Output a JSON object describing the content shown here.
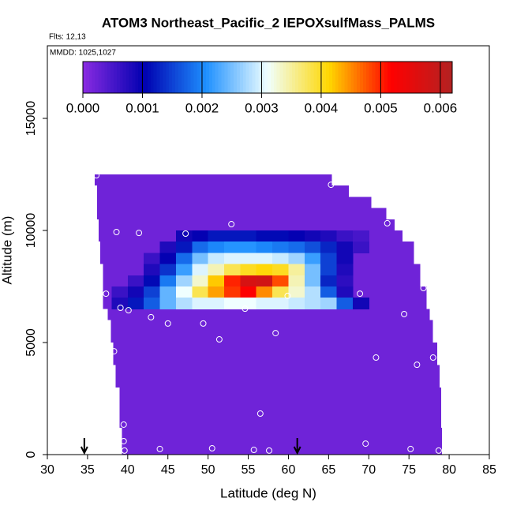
{
  "chart_data": {
    "type": "heatmap",
    "title": "ATOM3 Northeast_Pacific_2 IEPOXsulfMass_PALMS",
    "flights": "Flts: 12,13",
    "dates": "MMDD: 1025,1027",
    "x_label": "Latitude (deg N)",
    "y_label": "Altitude (m)",
    "xlim": [
      30,
      85
    ],
    "xticks": [
      30,
      35,
      40,
      45,
      50,
      55,
      60,
      65,
      70,
      75,
      80,
      85
    ],
    "ylim": [
      0,
      18240
    ],
    "yticks": [
      0,
      5000,
      10000,
      15000
    ],
    "colorbar": {
      "lim": [
        0,
        0.0062
      ],
      "ticks": [
        {
          "value": 0,
          "label": "0.000"
        },
        {
          "value": 0.001,
          "label": "0.001"
        },
        {
          "value": 0.002,
          "label": "0.002"
        },
        {
          "value": 0.003,
          "label": "0.003"
        },
        {
          "value": 0.004,
          "label": "0.004"
        },
        {
          "value": 0.005,
          "label": "0.005"
        },
        {
          "value": 0.006,
          "label": "0.006"
        }
      ],
      "colors": [
        "#8a2be2",
        "#0000b0",
        "#1e90ff",
        "#f0ffff",
        "#ffd700",
        "#ff0000",
        "#b22222"
      ]
    },
    "background": {
      "value": 0.0002,
      "bands": [
        {
          "alt": [
            0,
            1200
          ],
          "lat": [
            39.3,
            79.1
          ]
        },
        {
          "alt": [
            1200,
            3000
          ],
          "lat": [
            39.0,
            79.0
          ]
        },
        {
          "alt": [
            3000,
            4000
          ],
          "lat": [
            38.5,
            78.8
          ]
        },
        {
          "alt": [
            4000,
            5000
          ],
          "lat": [
            38.2,
            78.5
          ]
        },
        {
          "alt": [
            5000,
            6000
          ],
          "lat": [
            37.9,
            78.0
          ]
        },
        {
          "alt": [
            6000,
            6500
          ],
          "lat": [
            37.5,
            77.6
          ]
        },
        {
          "alt": [
            6500,
            7500
          ],
          "lat": [
            36.9,
            77.2
          ]
        },
        {
          "alt": [
            7500,
            8500
          ],
          "lat": [
            36.9,
            76.4
          ]
        },
        {
          "alt": [
            8500,
            9500
          ],
          "lat": [
            36.6,
            75.6
          ]
        },
        {
          "alt": [
            9500,
            10000
          ],
          "lat": [
            36.4,
            74.2
          ]
        },
        {
          "alt": [
            10000,
            10500
          ],
          "lat": [
            36.4,
            73.2
          ]
        },
        {
          "alt": [
            10500,
            11000
          ],
          "lat": [
            36.2,
            72.2
          ]
        },
        {
          "alt": [
            11000,
            11500
          ],
          "lat": [
            36.2,
            70.3
          ]
        },
        {
          "alt": [
            11500,
            12000
          ],
          "lat": [
            36.2,
            67.5
          ]
        },
        {
          "alt": [
            12000,
            12500
          ],
          "lat": [
            35.9,
            65.4
          ]
        }
      ]
    },
    "lat_edges": [
      38,
      40,
      42,
      44,
      46,
      48,
      50,
      52,
      54,
      56,
      58,
      60,
      62,
      64,
      66,
      68,
      70,
      72
    ],
    "rows": [
      {
        "alt": [
          9500,
          10000
        ],
        "values": [
          null,
          null,
          null,
          null,
          0.0009,
          0.001,
          0.0012,
          0.0012,
          0.0012,
          0.0011,
          0.0011,
          0.001,
          0.0009,
          0.0008,
          0.0006,
          0.0005,
          null
        ]
      },
      {
        "alt": [
          9000,
          9500
        ],
        "values": [
          null,
          null,
          null,
          0.0008,
          0.0012,
          0.0018,
          0.002,
          0.0021,
          0.0021,
          0.002,
          0.0019,
          0.0018,
          0.0016,
          0.0013,
          0.0009,
          0.0006,
          null
        ]
      },
      {
        "alt": [
          8500,
          9000
        ],
        "values": [
          null,
          null,
          0.0006,
          0.001,
          0.0018,
          0.0025,
          0.0029,
          0.003,
          0.003,
          0.003,
          0.0029,
          0.0027,
          0.0022,
          0.0015,
          0.0009,
          null,
          null
        ]
      },
      {
        "alt": [
          8000,
          8500
        ],
        "values": [
          null,
          null,
          0.0008,
          0.0014,
          0.0022,
          0.003,
          0.0034,
          0.0038,
          0.004,
          0.0041,
          0.004,
          0.0035,
          0.0025,
          0.0015,
          0.0008,
          null,
          null
        ]
      },
      {
        "alt": [
          7500,
          8000
        ],
        "values": [
          null,
          0.0006,
          0.0011,
          0.0019,
          0.0027,
          0.0033,
          0.0042,
          0.005,
          0.0057,
          0.0058,
          0.0048,
          0.0034,
          0.0025,
          0.0013,
          0.0007,
          null,
          null
        ]
      },
      {
        "alt": [
          7000,
          7500
        ],
        "values": [
          0.0006,
          0.0009,
          0.0015,
          0.0024,
          0.0031,
          0.0038,
          0.0044,
          0.0049,
          0.0052,
          0.0045,
          0.0038,
          0.0033,
          0.0028,
          0.0017,
          0.0008,
          null,
          null
        ]
      },
      {
        "alt": [
          6500,
          7000
        ],
        "values": [
          0.0008,
          0.0012,
          0.0017,
          0.0024,
          0.0028,
          0.003,
          0.003,
          0.0031,
          0.0031,
          0.003,
          0.003,
          0.0029,
          0.0028,
          0.0027,
          0.0017,
          0.0009,
          null
        ]
      }
    ],
    "points": {
      "x": [
        36.1,
        65.3,
        52.9,
        38.6,
        41.4,
        47.2,
        72.3,
        37.3,
        59.9,
        68.9,
        76.8,
        39.1,
        40.1,
        54.6,
        74.4,
        42.9,
        45.0,
        49.4,
        58.4,
        51.4,
        38.3,
        70.9,
        78.0,
        76.0,
        79.3,
        56.5,
        39.5,
        39.5,
        69.6,
        39.6,
        44.0,
        50.5,
        55.7,
        57.6,
        75.2,
        78.7
      ],
      "y": [
        12460,
        12040,
        10280,
        9930,
        9890,
        9860,
        10320,
        7180,
        7080,
        7180,
        7430,
        6550,
        6440,
        6510,
        6270,
        6130,
        5850,
        5850,
        5420,
        5140,
        4610,
        4330,
        4330,
        4010,
        3870,
        1830,
        1340,
        600,
        490,
        180,
        250,
        280,
        210,
        180,
        250,
        180
      ]
    },
    "arrows": [
      34.6,
      61.1
    ]
  }
}
